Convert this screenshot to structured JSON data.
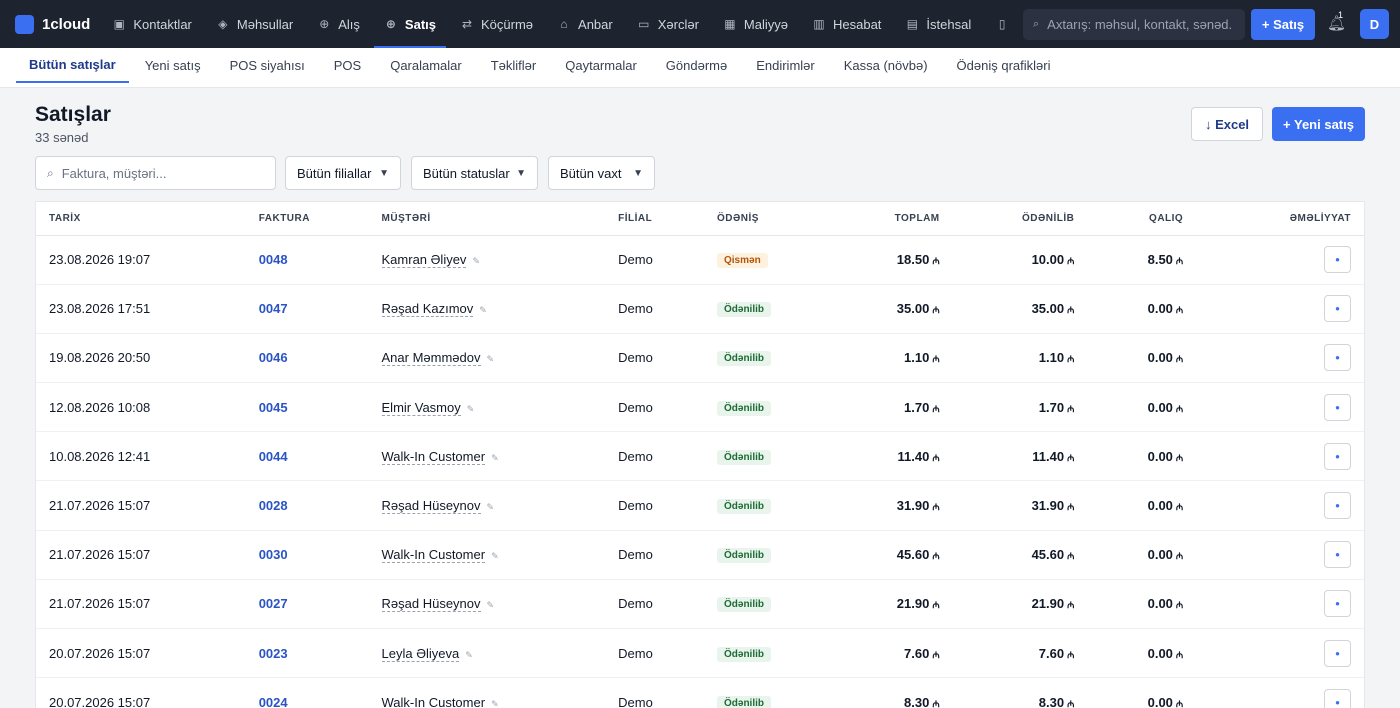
{
  "app": {
    "name": "1cloud"
  },
  "nav": [
    {
      "label": "Kontaktlar",
      "icon": "contacts-icon",
      "glyph": "▣",
      "active": false
    },
    {
      "label": "Məhsullar",
      "icon": "box-icon",
      "glyph": "◈",
      "active": false
    },
    {
      "label": "Alış",
      "icon": "purchase-icon",
      "glyph": "⊕",
      "active": false
    },
    {
      "label": "Satış",
      "icon": "sale-icon",
      "glyph": "⊕",
      "active": true
    },
    {
      "label": "Köçürmə",
      "icon": "transfer-icon",
      "glyph": "⇄",
      "active": false
    },
    {
      "label": "Anbar",
      "icon": "warehouse-icon",
      "glyph": "⌂",
      "active": false
    },
    {
      "label": "Xərclər",
      "icon": "expense-icon",
      "glyph": "▭",
      "active": false
    },
    {
      "label": "Maliyyə",
      "icon": "finance-icon",
      "glyph": "▦",
      "active": false
    },
    {
      "label": "Hesabat",
      "icon": "report-icon",
      "glyph": "▥",
      "active": false
    },
    {
      "label": "İstehsal",
      "icon": "production-icon",
      "glyph": "▤",
      "active": false
    },
    {
      "label": "",
      "icon": "more-icon",
      "glyph": "▯",
      "active": false
    }
  ],
  "top_search": {
    "placeholder": "Axtarış: məhsul, kontakt, sənəd..."
  },
  "top_sale_button": "+ Satış",
  "notifications": {
    "count": "1"
  },
  "user": {
    "initial": "D"
  },
  "subnav": [
    {
      "label": "Bütün satışlar",
      "active": true
    },
    {
      "label": "Yeni satış",
      "active": false
    },
    {
      "label": "POS siyahısı",
      "active": false
    },
    {
      "label": "POS",
      "active": false
    },
    {
      "label": "Qaralamalar",
      "active": false
    },
    {
      "label": "Təkliflər",
      "active": false
    },
    {
      "label": "Qaytarmalar",
      "active": false
    },
    {
      "label": "Göndərmə",
      "active": false
    },
    {
      "label": "Endirimlər",
      "active": false
    },
    {
      "label": "Kassa (növbə)",
      "active": false
    },
    {
      "label": "Ödəniş qrafikləri",
      "active": false
    }
  ],
  "page": {
    "title": "Satışlar",
    "subtitle": "33 sənəd"
  },
  "actions": {
    "excel": "↓ Excel",
    "new_sale": "+ Yeni satış"
  },
  "filters": {
    "search_placeholder": "Faktura, müştəri...",
    "branch": "Bütün filiallar",
    "status": "Bütün statuslar",
    "time": "Bütün vaxt"
  },
  "table": {
    "currency": "₼",
    "columns": [
      "TARİX",
      "FAKTURA",
      "MÜŞTƏRİ",
      "FİLİAL",
      "ÖDƏNİŞ",
      "TOPLAM",
      "ÖDƏNİLİB",
      "QALIQ",
      "ƏMƏLİYYAT"
    ],
    "rows": [
      {
        "date": "23.08.2026 19:07",
        "invoice": "0048",
        "customer": "Kamran Əliyev",
        "branch": "Demo",
        "status": "Qismən",
        "status_type": "partial",
        "total": "18.50",
        "paid": "10.00",
        "balance": "8.50"
      },
      {
        "date": "23.08.2026 17:51",
        "invoice": "0047",
        "customer": "Rəşad Kazımov",
        "branch": "Demo",
        "status": "Ödənilib",
        "status_type": "paid",
        "total": "35.00",
        "paid": "35.00",
        "balance": "0.00"
      },
      {
        "date": "19.08.2026 20:50",
        "invoice": "0046",
        "customer": "Anar Məmmədov",
        "branch": "Demo",
        "status": "Ödənilib",
        "status_type": "paid",
        "total": "1.10",
        "paid": "1.10",
        "balance": "0.00"
      },
      {
        "date": "12.08.2026 10:08",
        "invoice": "0045",
        "customer": "Elmir Vasmoy",
        "branch": "Demo",
        "status": "Ödənilib",
        "status_type": "paid",
        "total": "1.70",
        "paid": "1.70",
        "balance": "0.00"
      },
      {
        "date": "10.08.2026 12:41",
        "invoice": "0044",
        "customer": "Walk-In Customer",
        "branch": "Demo",
        "status": "Ödənilib",
        "status_type": "paid",
        "total": "11.40",
        "paid": "11.40",
        "balance": "0.00"
      },
      {
        "date": "21.07.2026 15:07",
        "invoice": "0028",
        "customer": "Rəşad Hüseynov",
        "branch": "Demo",
        "status": "Ödənilib",
        "status_type": "paid",
        "total": "31.90",
        "paid": "31.90",
        "balance": "0.00"
      },
      {
        "date": "21.07.2026 15:07",
        "invoice": "0030",
        "customer": "Walk-In Customer",
        "branch": "Demo",
        "status": "Ödənilib",
        "status_type": "paid",
        "total": "45.60",
        "paid": "45.60",
        "balance": "0.00"
      },
      {
        "date": "21.07.2026 15:07",
        "invoice": "0027",
        "customer": "Rəşad Hüseynov",
        "branch": "Demo",
        "status": "Ödənilib",
        "status_type": "paid",
        "total": "21.90",
        "paid": "21.90",
        "balance": "0.00"
      },
      {
        "date": "20.07.2026 15:07",
        "invoice": "0023",
        "customer": "Leyla Əliyeva",
        "branch": "Demo",
        "status": "Ödənilib",
        "status_type": "paid",
        "total": "7.60",
        "paid": "7.60",
        "balance": "0.00"
      },
      {
        "date": "20.07.2026 15:07",
        "invoice": "0024",
        "customer": "Walk-In Customer",
        "branch": "Demo",
        "status": "Ödənilib",
        "status_type": "paid",
        "total": "8.30",
        "paid": "8.30",
        "balance": "0.00"
      }
    ]
  },
  "colors": {
    "accent": "#3b6ff2",
    "topbar": "#1e2330",
    "link": "#2a54c4",
    "paid_bg": "#e9f5ec",
    "partial_bg": "#fdf2e0"
  }
}
